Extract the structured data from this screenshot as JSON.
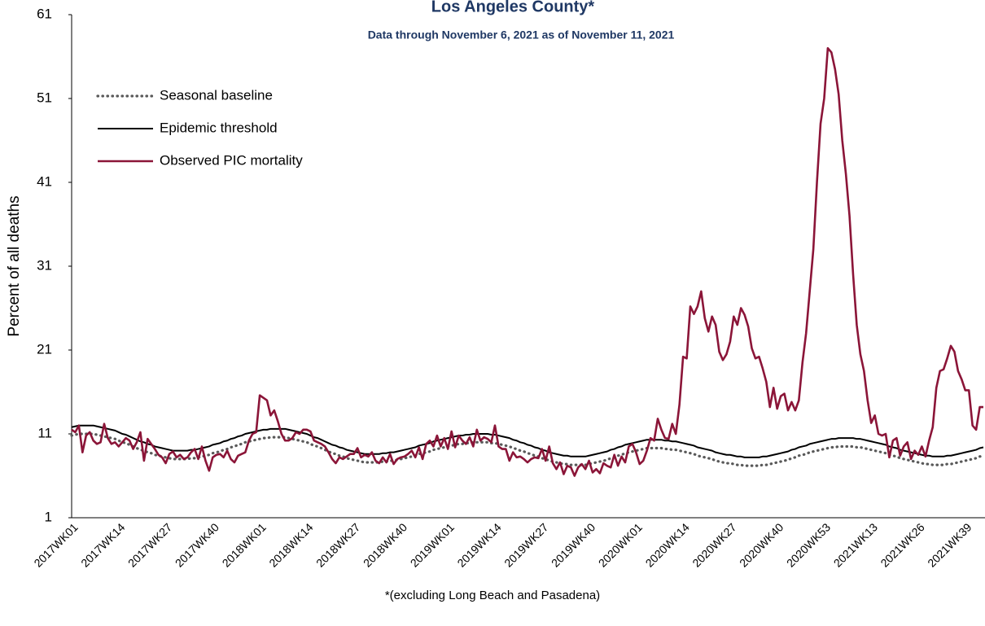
{
  "chart_data": {
    "type": "line",
    "title": "Los Angeles County*",
    "subtitle": "Data through November 6, 2021 as of November 11, 2021",
    "ylabel": "Percent of all deaths",
    "footnote": "*(excluding Long Beach and Pasadena)",
    "ylim": [
      1,
      61
    ],
    "yticks": [
      1,
      11,
      21,
      31,
      41,
      51,
      61
    ],
    "grid": false,
    "legend": "top-left",
    "categories": [
      "2017WK01",
      null,
      null,
      null,
      null,
      null,
      null,
      null,
      null,
      null,
      null,
      null,
      null,
      "2017WK14",
      null,
      null,
      null,
      null,
      null,
      null,
      null,
      null,
      null,
      null,
      null,
      null,
      "2017WK27",
      null,
      null,
      null,
      null,
      null,
      null,
      null,
      null,
      null,
      null,
      null,
      null,
      "2017WK40",
      null,
      null,
      null,
      null,
      null,
      null,
      null,
      null,
      null,
      null,
      null,
      null,
      "2018WK01",
      null,
      null,
      null,
      null,
      null,
      null,
      null,
      null,
      null,
      null,
      null,
      null,
      "2018WK14",
      null,
      null,
      null,
      null,
      null,
      null,
      null,
      null,
      null,
      null,
      null,
      null,
      "2018WK27",
      null,
      null,
      null,
      null,
      null,
      null,
      null,
      null,
      null,
      null,
      null,
      null,
      "2018WK40",
      null,
      null,
      null,
      null,
      null,
      null,
      null,
      null,
      null,
      null,
      null,
      null,
      "2019WK01",
      null,
      null,
      null,
      null,
      null,
      null,
      null,
      null,
      null,
      null,
      null,
      null,
      "2019WK14",
      null,
      null,
      null,
      null,
      null,
      null,
      null,
      null,
      null,
      null,
      null,
      null,
      "2019WK27",
      null,
      null,
      null,
      null,
      null,
      null,
      null,
      null,
      null,
      null,
      null,
      null,
      "2019WK40",
      null,
      null,
      null,
      null,
      null,
      null,
      null,
      null,
      null,
      null,
      null,
      null,
      "2020WK01",
      null,
      null,
      null,
      null,
      null,
      null,
      null,
      null,
      null,
      null,
      null,
      null,
      "2020WK14",
      null,
      null,
      null,
      null,
      null,
      null,
      null,
      null,
      null,
      null,
      null,
      null,
      "2020WK27",
      null,
      null,
      null,
      null,
      null,
      null,
      null,
      null,
      null,
      null,
      null,
      null,
      "2020WK40",
      null,
      null,
      null,
      null,
      null,
      null,
      null,
      null,
      null,
      null,
      null,
      null,
      "2020WK53",
      null,
      null,
      null,
      null,
      null,
      null,
      null,
      null,
      null,
      null,
      null,
      null,
      "2021WK13",
      null,
      null,
      null,
      null,
      null,
      null,
      null,
      null,
      null,
      null,
      null,
      null,
      "2021WK26",
      null,
      null,
      null,
      null,
      null,
      null,
      null,
      null,
      null,
      null,
      null,
      null,
      "2021WK39",
      null,
      null,
      null,
      null,
      null
    ],
    "series": [
      {
        "name": "Seasonal baseline",
        "color": "#595959",
        "style": "dotted",
        "values": [
          10.8,
          10.9,
          11.0,
          11.0,
          11.0,
          11.0,
          11.0,
          10.9,
          10.8,
          10.7,
          10.6,
          10.5,
          10.4,
          10.2,
          10.0,
          9.9,
          9.7,
          9.5,
          9.3,
          9.1,
          9.0,
          8.8,
          8.7,
          8.5,
          8.4,
          8.3,
          8.2,
          8.1,
          8.0,
          8.0,
          8.0,
          8.0,
          8.0,
          8.1,
          8.1,
          8.2,
          8.3,
          8.4,
          8.5,
          8.7,
          8.8,
          8.9,
          9.1,
          9.2,
          9.4,
          9.5,
          9.7,
          9.8,
          10.0,
          10.1,
          10.2,
          10.3,
          10.4,
          10.5,
          10.5,
          10.6,
          10.6,
          10.6,
          10.6,
          10.6,
          10.5,
          10.4,
          10.3,
          10.2,
          10.1,
          10.0,
          9.8,
          9.6,
          9.5,
          9.3,
          9.1,
          8.9,
          8.7,
          8.6,
          8.4,
          8.3,
          8.1,
          8.0,
          7.9,
          7.8,
          7.7,
          7.6,
          7.6,
          7.6,
          7.6,
          7.6,
          7.7,
          7.7,
          7.8,
          7.8,
          7.9,
          8.0,
          8.1,
          8.2,
          8.3,
          8.4,
          8.6,
          8.7,
          8.8,
          8.9,
          9.1,
          9.2,
          9.3,
          9.4,
          9.5,
          9.6,
          9.7,
          9.8,
          9.8,
          9.9,
          9.9,
          10.0,
          10.0,
          10.0,
          10.0,
          10.0,
          9.9,
          9.9,
          9.8,
          9.7,
          9.6,
          9.5,
          9.3,
          9.2,
          9.0,
          8.9,
          8.7,
          8.6,
          8.4,
          8.3,
          8.1,
          8.0,
          7.8,
          7.7,
          7.6,
          7.5,
          7.4,
          7.4,
          7.3,
          7.3,
          7.3,
          7.3,
          7.3,
          7.4,
          7.5,
          7.6,
          7.7,
          7.8,
          7.9,
          8.1,
          8.2,
          8.4,
          8.5,
          8.7,
          8.8,
          8.9,
          9.0,
          9.1,
          9.2,
          9.3,
          9.3,
          9.3,
          9.3,
          9.3,
          9.2,
          9.2,
          9.1,
          9.1,
          9.0,
          8.9,
          8.8,
          8.7,
          8.6,
          8.4,
          8.3,
          8.2,
          8.1,
          8.0,
          7.8,
          7.7,
          7.6,
          7.5,
          7.5,
          7.4,
          7.3,
          7.3,
          7.2,
          7.2,
          7.2,
          7.2,
          7.2,
          7.3,
          7.3,
          7.4,
          7.5,
          7.6,
          7.7,
          7.8,
          7.9,
          8.1,
          8.2,
          8.4,
          8.5,
          8.6,
          8.8,
          8.9,
          9.0,
          9.1,
          9.2,
          9.3,
          9.4,
          9.4,
          9.5,
          9.5,
          9.5,
          9.5,
          9.5,
          9.4,
          9.4,
          9.3,
          9.2,
          9.1,
          9.0,
          8.9,
          8.8,
          8.7,
          8.5,
          8.4,
          8.3,
          8.1,
          8.0,
          7.9,
          7.8,
          7.7,
          7.6,
          7.5,
          7.4,
          7.4,
          7.3,
          7.3,
          7.3,
          7.3,
          7.4,
          7.4,
          7.5,
          7.6,
          7.7,
          7.8,
          7.9,
          8.0,
          8.1,
          8.3,
          8.4
        ]
      },
      {
        "name": "Epidemic threshold",
        "color": "#000000",
        "style": "solid",
        "values": [
          11.8,
          11.9,
          12.0,
          12.0,
          12.0,
          12.0,
          12.0,
          11.9,
          11.8,
          11.7,
          11.6,
          11.5,
          11.4,
          11.2,
          11.0,
          10.9,
          10.7,
          10.5,
          10.3,
          10.1,
          10.0,
          9.8,
          9.7,
          9.5,
          9.4,
          9.3,
          9.2,
          9.1,
          9.0,
          9.0,
          9.0,
          9.0,
          9.0,
          9.1,
          9.1,
          9.2,
          9.3,
          9.4,
          9.5,
          9.7,
          9.8,
          9.9,
          10.1,
          10.2,
          10.4,
          10.5,
          10.7,
          10.8,
          11.0,
          11.1,
          11.2,
          11.3,
          11.4,
          11.5,
          11.5,
          11.6,
          11.6,
          11.6,
          11.6,
          11.6,
          11.5,
          11.4,
          11.3,
          11.2,
          11.1,
          11.0,
          10.8,
          10.6,
          10.5,
          10.3,
          10.1,
          9.9,
          9.7,
          9.6,
          9.4,
          9.3,
          9.1,
          9.0,
          8.9,
          8.8,
          8.7,
          8.6,
          8.6,
          8.6,
          8.6,
          8.6,
          8.7,
          8.7,
          8.8,
          8.8,
          8.9,
          9.0,
          9.1,
          9.2,
          9.3,
          9.4,
          9.6,
          9.7,
          9.8,
          9.9,
          10.1,
          10.2,
          10.3,
          10.4,
          10.5,
          10.6,
          10.7,
          10.8,
          10.8,
          10.9,
          10.9,
          11.0,
          11.0,
          11.0,
          11.0,
          11.0,
          10.9,
          10.9,
          10.8,
          10.7,
          10.6,
          10.5,
          10.3,
          10.2,
          10.0,
          9.9,
          9.7,
          9.6,
          9.4,
          9.3,
          9.1,
          9.0,
          8.8,
          8.7,
          8.6,
          8.5,
          8.4,
          8.4,
          8.3,
          8.3,
          8.3,
          8.3,
          8.3,
          8.4,
          8.5,
          8.6,
          8.7,
          8.8,
          8.9,
          9.1,
          9.2,
          9.4,
          9.5,
          9.7,
          9.8,
          9.9,
          10.0,
          10.1,
          10.2,
          10.3,
          10.3,
          10.3,
          10.3,
          10.3,
          10.2,
          10.2,
          10.1,
          10.1,
          10.0,
          9.9,
          9.8,
          9.7,
          9.6,
          9.4,
          9.3,
          9.2,
          9.1,
          9.0,
          8.8,
          8.7,
          8.6,
          8.5,
          8.5,
          8.4,
          8.3,
          8.3,
          8.2,
          8.2,
          8.2,
          8.2,
          8.2,
          8.3,
          8.3,
          8.4,
          8.5,
          8.6,
          8.7,
          8.8,
          8.9,
          9.1,
          9.2,
          9.4,
          9.5,
          9.6,
          9.8,
          9.9,
          10.0,
          10.1,
          10.2,
          10.3,
          10.4,
          10.4,
          10.5,
          10.5,
          10.5,
          10.5,
          10.5,
          10.4,
          10.4,
          10.3,
          10.2,
          10.1,
          10.0,
          9.9,
          9.8,
          9.7,
          9.5,
          9.4,
          9.3,
          9.1,
          9.0,
          8.9,
          8.8,
          8.7,
          8.6,
          8.5,
          8.4,
          8.4,
          8.3,
          8.3,
          8.3,
          8.3,
          8.4,
          8.4,
          8.5,
          8.6,
          8.7,
          8.8,
          8.9,
          9.0,
          9.1,
          9.3,
          9.4
        ]
      },
      {
        "name": "Observed PIC mortality",
        "color": "#8b1538",
        "style": "solid",
        "values": [
          11.5,
          11.2,
          12.0,
          8.8,
          10.8,
          11.2,
          10.2,
          9.8,
          10.0,
          12.2,
          10.5,
          9.8,
          10.0,
          9.5,
          10.0,
          10.5,
          10.2,
          9.2,
          10.0,
          11.2,
          7.8,
          10.4,
          9.8,
          9.2,
          8.5,
          8.2,
          7.5,
          8.6,
          8.9,
          8.2,
          8.5,
          8.0,
          8.2,
          8.8,
          9.2,
          8.0,
          9.5,
          7.8,
          6.6,
          8.2,
          8.5,
          8.6,
          8.2,
          9.0,
          8.0,
          7.6,
          8.4,
          8.6,
          8.8,
          10.2,
          11.0,
          11.2,
          15.6,
          15.3,
          15.0,
          13.2,
          13.8,
          12.5,
          11.0,
          10.2,
          10.2,
          10.5,
          11.2,
          11.0,
          11.5,
          11.5,
          11.3,
          10.2,
          10.0,
          9.8,
          9.5,
          8.8,
          8.0,
          7.5,
          8.2,
          8.0,
          8.3,
          8.6,
          8.6,
          9.3,
          8.2,
          8.5,
          8.3,
          8.8,
          7.8,
          7.5,
          8.2,
          7.6,
          8.6,
          7.4,
          8.0,
          8.2,
          8.3,
          8.6,
          9.0,
          8.2,
          9.4,
          8.0,
          9.8,
          10.2,
          9.5,
          10.8,
          9.5,
          10.5,
          9.2,
          11.3,
          9.4,
          10.8,
          10.2,
          9.8,
          10.6,
          9.5,
          11.5,
          10.2,
          10.6,
          10.4,
          10.0,
          12.0,
          9.5,
          9.2,
          9.2,
          7.8,
          8.8,
          8.2,
          8.3,
          8.0,
          7.6,
          8.0,
          8.2,
          8.1,
          9.2,
          7.8,
          9.5,
          7.5,
          6.8,
          7.6,
          6.2,
          7.2,
          7.0,
          6.0,
          7.0,
          7.4,
          6.8,
          7.8,
          6.4,
          6.8,
          6.3,
          7.5,
          7.2,
          7.0,
          8.5,
          7.2,
          8.3,
          7.6,
          9.5,
          9.8,
          8.8,
          7.4,
          7.8,
          9.0,
          10.5,
          10.2,
          12.8,
          11.5,
          10.5,
          10.4,
          12.2,
          11.0,
          14.5,
          20.2,
          20.0,
          26.2,
          25.3,
          26.2,
          28,
          24.8,
          23.2,
          25,
          24,
          20.8,
          19.8,
          20.5,
          22,
          25,
          24,
          26,
          25.2,
          23.8,
          21.2,
          20.0,
          20.2,
          18.8,
          17.2,
          14.2,
          16.5,
          14.0,
          15.5,
          15.8,
          13.8,
          14.8,
          13.8,
          15.0,
          19.5,
          23,
          28,
          33,
          41,
          48,
          51,
          57,
          56.5,
          54.5,
          51.5,
          46,
          42,
          37,
          30,
          24,
          20.5,
          18.5,
          15,
          12.3,
          13.2,
          11,
          10.8,
          11,
          8.2,
          10.2,
          10.5,
          8.4,
          9.5,
          10.0,
          8.0,
          9.0,
          8.5,
          9.5,
          8.3,
          10.2,
          11.8,
          16.5,
          18.5,
          18.7,
          20,
          21.5,
          20.8,
          18.5,
          17.5,
          16.2,
          16.2,
          12,
          11.5,
          14.2,
          14.2
        ]
      }
    ]
  }
}
